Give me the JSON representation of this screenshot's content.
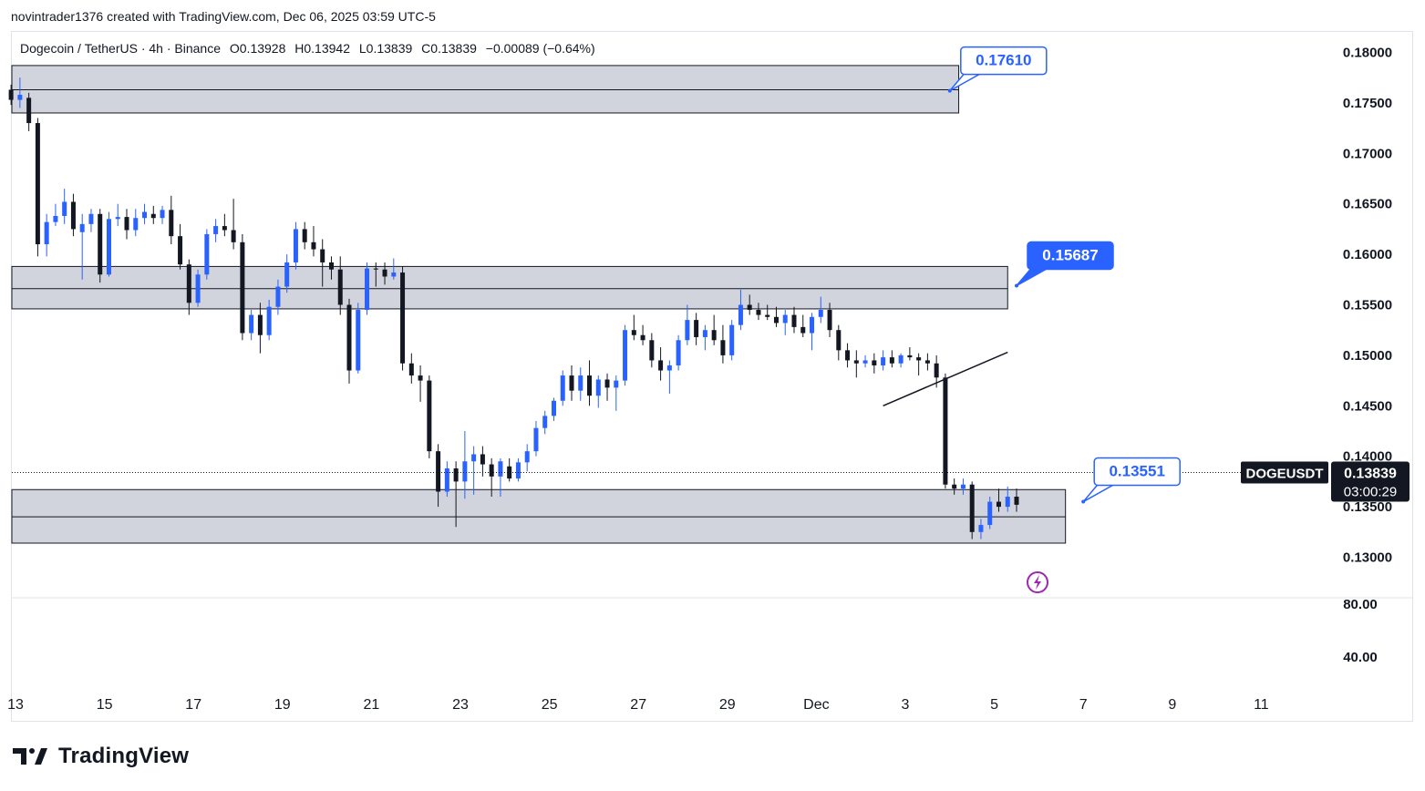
{
  "header": {
    "credit": "novintrader1376 created with TradingView.com, Dec 06, 2025 03:59 UTC-5"
  },
  "legend": {
    "pair": "Dogecoin / TetherUS · 4h · Binance",
    "open": "O0.13928",
    "high": "H0.13942",
    "low": "L0.13839",
    "close": "C0.13839",
    "change": "−0.00089 (−0.64%)"
  },
  "brand": {
    "name": "TradingView"
  },
  "colors": {
    "up": "#2962ff",
    "down": "#131722",
    "zone": "#d1d4dc",
    "callout": "#2962ff"
  },
  "chart_data": {
    "type": "candlestick",
    "symbol": "DOGEUSDT",
    "last_price": "0.13839",
    "countdown": "03:00:29",
    "price_range": [
      0.1285,
      0.182
    ],
    "y_ticks": [
      "0.18000",
      "0.17500",
      "0.17000",
      "0.16500",
      "0.16000",
      "0.15500",
      "0.15000",
      "0.14500",
      "0.14000",
      "0.13500",
      "0.13000"
    ],
    "indicator_ticks": [
      "80.00",
      "40.00"
    ],
    "x_ticks": [
      "13",
      "15",
      "17",
      "19",
      "21",
      "23",
      "25",
      "27",
      "29",
      "Dec",
      "3",
      "5",
      "7",
      "9",
      "11"
    ],
    "x_tick_days": [
      13,
      15,
      17,
      19,
      21,
      23,
      25,
      27,
      29,
      31,
      33,
      35,
      37,
      39,
      41
    ],
    "zones": [
      {
        "top": 0.1787,
        "bottom": 0.174,
        "mid": 0.1763,
        "end_day": 34.2
      },
      {
        "top": 0.1588,
        "bottom": 0.1546,
        "mid": 0.1566,
        "end_day": 35.3
      },
      {
        "top": 0.1367,
        "bottom": 0.1314,
        "mid": 0.134,
        "end_day": 36.6
      }
    ],
    "callouts": [
      {
        "label": "0.17610",
        "style": "outline",
        "anchor_day": 34.0,
        "anchor_price": 0.1762
      },
      {
        "label": "0.15687",
        "style": "filled",
        "anchor_day": 35.5,
        "anchor_price": 0.1569
      },
      {
        "label": "0.13551",
        "style": "outline",
        "anchor_day": 37.0,
        "anchor_price": 0.1355
      }
    ],
    "trendline": {
      "from": [
        32.5,
        0.145
      ],
      "to": [
        35.3,
        0.1503
      ]
    },
    "candles_ohlc": [
      [
        12.9,
        0.1763,
        0.1768,
        0.1748,
        0.1753
      ],
      [
        13.1,
        0.1753,
        0.1775,
        0.1745,
        0.1758
      ],
      [
        13.3,
        0.1755,
        0.176,
        0.1722,
        0.173
      ],
      [
        13.5,
        0.173,
        0.1735,
        0.1598,
        0.161
      ],
      [
        13.7,
        0.161,
        0.164,
        0.1598,
        0.1632
      ],
      [
        13.9,
        0.1632,
        0.165,
        0.1628,
        0.1638
      ],
      [
        14.1,
        0.1638,
        0.1665,
        0.163,
        0.1652
      ],
      [
        14.3,
        0.1652,
        0.166,
        0.1618,
        0.1625
      ],
      [
        14.5,
        0.1622,
        0.164,
        0.1575,
        0.163
      ],
      [
        14.7,
        0.163,
        0.1645,
        0.1622,
        0.164
      ],
      [
        14.9,
        0.164,
        0.1645,
        0.1572,
        0.158
      ],
      [
        15.1,
        0.158,
        0.1642,
        0.1578,
        0.1635
      ],
      [
        15.3,
        0.1635,
        0.165,
        0.1628,
        0.1637
      ],
      [
        15.5,
        0.1637,
        0.1645,
        0.1615,
        0.1624
      ],
      [
        15.7,
        0.1624,
        0.1645,
        0.1618,
        0.1636
      ],
      [
        15.9,
        0.1636,
        0.165,
        0.163,
        0.1642
      ],
      [
        16.1,
        0.164,
        0.1648,
        0.163,
        0.1636
      ],
      [
        16.3,
        0.1636,
        0.1648,
        0.163,
        0.1644
      ],
      [
        16.5,
        0.1644,
        0.1658,
        0.161,
        0.1618
      ],
      [
        16.7,
        0.1618,
        0.163,
        0.1585,
        0.159
      ],
      [
        16.9,
        0.159,
        0.1595,
        0.154,
        0.1552
      ],
      [
        17.1,
        0.1552,
        0.1585,
        0.1548,
        0.158
      ],
      [
        17.3,
        0.158,
        0.1625,
        0.1575,
        0.162
      ],
      [
        17.5,
        0.162,
        0.1635,
        0.1612,
        0.1628
      ],
      [
        17.7,
        0.1628,
        0.164,
        0.1618,
        0.1624
      ],
      [
        17.9,
        0.1624,
        0.1655,
        0.1605,
        0.1612
      ],
      [
        18.1,
        0.1612,
        0.162,
        0.1515,
        0.1522
      ],
      [
        18.3,
        0.1522,
        0.1545,
        0.1515,
        0.154
      ],
      [
        18.5,
        0.154,
        0.1552,
        0.1502,
        0.152
      ],
      [
        18.7,
        0.152,
        0.1555,
        0.1515,
        0.1548
      ],
      [
        18.9,
        0.1548,
        0.1575,
        0.154,
        0.1568
      ],
      [
        19.1,
        0.1568,
        0.16,
        0.1562,
        0.1592
      ],
      [
        19.3,
        0.1592,
        0.1632,
        0.1585,
        0.1625
      ],
      [
        19.5,
        0.1625,
        0.1632,
        0.1605,
        0.1612
      ],
      [
        19.7,
        0.1612,
        0.1628,
        0.1598,
        0.1605
      ],
      [
        19.9,
        0.1605,
        0.1615,
        0.1568,
        0.1592
      ],
      [
        20.1,
        0.1592,
        0.1598,
        0.1575,
        0.1585
      ],
      [
        20.3,
        0.1585,
        0.1598,
        0.154,
        0.155
      ],
      [
        20.5,
        0.155,
        0.1556,
        0.1472,
        0.1485
      ],
      [
        20.7,
        0.1485,
        0.1552,
        0.1482,
        0.1545
      ],
      [
        20.9,
        0.1545,
        0.1592,
        0.154,
        0.1586
      ],
      [
        21.1,
        0.1586,
        0.1592,
        0.1568,
        0.1585
      ],
      [
        21.3,
        0.1585,
        0.1592,
        0.157,
        0.1578
      ],
      [
        21.5,
        0.1578,
        0.1596,
        0.1575,
        0.1582
      ],
      [
        21.7,
        0.1582,
        0.1588,
        0.1485,
        0.1492
      ],
      [
        21.9,
        0.1492,
        0.1502,
        0.1472,
        0.148
      ],
      [
        22.1,
        0.148,
        0.149,
        0.1454,
        0.1475
      ],
      [
        22.3,
        0.1475,
        0.148,
        0.1398,
        0.1405
      ],
      [
        22.5,
        0.1405,
        0.1412,
        0.135,
        0.1365
      ],
      [
        22.7,
        0.1365,
        0.1395,
        0.136,
        0.1388
      ],
      [
        22.9,
        0.1388,
        0.1395,
        0.133,
        0.1375
      ],
      [
        23.1,
        0.1375,
        0.1425,
        0.1358,
        0.1395
      ],
      [
        23.3,
        0.1395,
        0.141,
        0.1362,
        0.1402
      ],
      [
        23.5,
        0.1402,
        0.141,
        0.138,
        0.1392
      ],
      [
        23.7,
        0.1392,
        0.1398,
        0.136,
        0.138
      ],
      [
        23.9,
        0.138,
        0.1398,
        0.136,
        0.1395
      ],
      [
        24.1,
        0.139,
        0.1398,
        0.1375,
        0.1378
      ],
      [
        24.3,
        0.1378,
        0.1398,
        0.1375,
        0.1394
      ],
      [
        24.5,
        0.1394,
        0.1412,
        0.1385,
        0.1405
      ],
      [
        24.7,
        0.1405,
        0.1435,
        0.14,
        0.1428
      ],
      [
        24.9,
        0.1428,
        0.1445,
        0.1422,
        0.144
      ],
      [
        25.1,
        0.144,
        0.1458,
        0.1435,
        0.1455
      ],
      [
        25.3,
        0.1455,
        0.1485,
        0.145,
        0.148
      ],
      [
        25.5,
        0.148,
        0.149,
        0.1455,
        0.1465
      ],
      [
        25.7,
        0.1465,
        0.1488,
        0.1455,
        0.148
      ],
      [
        25.9,
        0.148,
        0.1495,
        0.145,
        0.146
      ],
      [
        26.1,
        0.146,
        0.148,
        0.1448,
        0.1476
      ],
      [
        26.3,
        0.1476,
        0.1482,
        0.1455,
        0.1468
      ],
      [
        26.5,
        0.1468,
        0.148,
        0.1445,
        0.1475
      ],
      [
        26.7,
        0.1475,
        0.153,
        0.147,
        0.1525
      ],
      [
        26.9,
        0.1525,
        0.154,
        0.1515,
        0.152
      ],
      [
        27.1,
        0.152,
        0.153,
        0.151,
        0.1515
      ],
      [
        27.3,
        0.1515,
        0.1522,
        0.1488,
        0.1495
      ],
      [
        27.5,
        0.1495,
        0.1508,
        0.1475,
        0.1485
      ],
      [
        27.7,
        0.1485,
        0.1495,
        0.1462,
        0.149
      ],
      [
        27.9,
        0.149,
        0.152,
        0.1485,
        0.1515
      ],
      [
        28.1,
        0.1515,
        0.155,
        0.151,
        0.1535
      ],
      [
        28.3,
        0.1535,
        0.1542,
        0.151,
        0.1518
      ],
      [
        28.5,
        0.1518,
        0.153,
        0.1505,
        0.1525
      ],
      [
        28.7,
        0.1525,
        0.154,
        0.151,
        0.1515
      ],
      [
        28.9,
        0.1515,
        0.153,
        0.1492,
        0.15
      ],
      [
        29.1,
        0.15,
        0.1535,
        0.1495,
        0.153
      ],
      [
        29.3,
        0.153,
        0.1565,
        0.1525,
        0.155
      ],
      [
        29.5,
        0.155,
        0.156,
        0.154,
        0.1545
      ],
      [
        29.7,
        0.1545,
        0.1552,
        0.1535,
        0.154
      ],
      [
        29.9,
        0.154,
        0.155,
        0.1535,
        0.1538
      ],
      [
        30.1,
        0.1538,
        0.1548,
        0.1528,
        0.1532
      ],
      [
        30.3,
        0.1532,
        0.1545,
        0.152,
        0.154
      ],
      [
        30.5,
        0.154,
        0.1548,
        0.1522,
        0.1528
      ],
      [
        30.7,
        0.1528,
        0.154,
        0.1518,
        0.1522
      ],
      [
        30.9,
        0.1522,
        0.1542,
        0.1505,
        0.1538
      ],
      [
        31.1,
        0.1538,
        0.1558,
        0.1532,
        0.1545
      ],
      [
        31.3,
        0.1545,
        0.1552,
        0.1518,
        0.1525
      ],
      [
        31.5,
        0.1525,
        0.153,
        0.1495,
        0.1505
      ],
      [
        31.7,
        0.1505,
        0.1512,
        0.1488,
        0.1495
      ],
      [
        31.9,
        0.1495,
        0.1505,
        0.1478,
        0.1492
      ],
      [
        32.1,
        0.1492,
        0.15,
        0.1488,
        0.1495
      ],
      [
        32.3,
        0.1495,
        0.1502,
        0.1482,
        0.149
      ],
      [
        32.5,
        0.149,
        0.1505,
        0.1485,
        0.1498
      ],
      [
        32.7,
        0.1498,
        0.1505,
        0.1488,
        0.1492
      ],
      [
        32.9,
        0.1492,
        0.1502,
        0.1488,
        0.15
      ],
      [
        33.1,
        0.15,
        0.1508,
        0.1495,
        0.1498
      ],
      [
        33.3,
        0.1498,
        0.1502,
        0.148,
        0.1495
      ],
      [
        33.5,
        0.1495,
        0.1502,
        0.1485,
        0.1492
      ],
      [
        33.7,
        0.1492,
        0.15,
        0.1468,
        0.1478
      ],
      [
        33.9,
        0.1478,
        0.1482,
        0.1368,
        0.1372
      ],
      [
        34.1,
        0.1372,
        0.1378,
        0.1362,
        0.1368
      ],
      [
        34.3,
        0.1368,
        0.1378,
        0.1362,
        0.1372
      ],
      [
        34.5,
        0.1372,
        0.1375,
        0.1318,
        0.1325
      ],
      [
        34.7,
        0.1325,
        0.1338,
        0.1318,
        0.1332
      ],
      [
        34.9,
        0.1332,
        0.136,
        0.1328,
        0.1355
      ],
      [
        35.1,
        0.1355,
        0.1368,
        0.1345,
        0.135
      ],
      [
        35.3,
        0.135,
        0.137,
        0.1345,
        0.136
      ],
      [
        35.5,
        0.136,
        0.1368,
        0.1345,
        0.1352
      ]
    ]
  }
}
